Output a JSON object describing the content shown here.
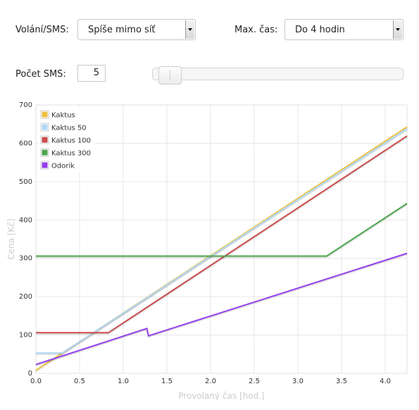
{
  "controls": {
    "calls_label": "Volání/SMS:",
    "calls_value": "Spíše mimo síť",
    "maxtime_label": "Max. čas:",
    "maxtime_value": "Do 4 hodin",
    "sms_label": "Počet SMS:",
    "sms_value": "5",
    "sms_slider_fraction": 0.03
  },
  "chart_data": {
    "type": "line",
    "xlabel": "Provolaný čas [hod.]",
    "ylabel": "Cena [Kč]",
    "xlim": [
      0,
      4.25
    ],
    "ylim": [
      0,
      700
    ],
    "xticks": [
      "0.0",
      "0.5",
      "1.0",
      "1.5",
      "2.0",
      "2.5",
      "3.0",
      "3.5",
      "4.0"
    ],
    "yticks": [
      "0",
      "100",
      "200",
      "300",
      "400",
      "500",
      "600",
      "700"
    ],
    "grid": true,
    "legend_position": "top-left",
    "series": [
      {
        "name": "Kaktus",
        "color": "#edc240",
        "x": [
          0,
          4.25
        ],
        "y": [
          8,
          643
        ]
      },
      {
        "name": "Kaktus 50",
        "color": "#afd8f8",
        "x": [
          0,
          0.3,
          4.25
        ],
        "y": [
          53,
          53,
          638
        ]
      },
      {
        "name": "Kaktus 100",
        "color": "#cb4b4b",
        "x": [
          0,
          0.83,
          4.25
        ],
        "y": [
          106,
          106,
          619
        ]
      },
      {
        "name": "Kaktus 300",
        "color": "#4da74d",
        "x": [
          0,
          3.33,
          4.25
        ],
        "y": [
          306,
          306,
          443
        ]
      },
      {
        "name": "Odorik",
        "color": "#9440ed",
        "x": [
          0,
          1.27,
          1.29,
          4.25
        ],
        "y": [
          23,
          117,
          98,
          313
        ]
      }
    ]
  }
}
